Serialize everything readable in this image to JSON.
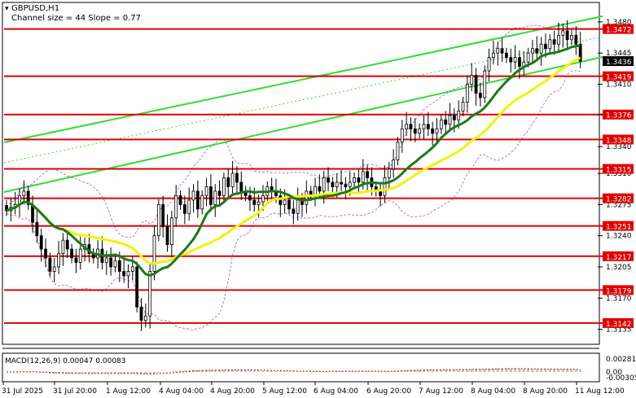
{
  "header": {
    "symbol": "GBPUSD,H1",
    "channel_info": "Channel size = 44 Slope = 0.77"
  },
  "price_axis": {
    "ticks": [
      "1.3480",
      "1.3445",
      "1.3410",
      "1.3376",
      "1.3340",
      "1.3310",
      "1.3275",
      "1.3240",
      "1.3205",
      "1.3170",
      "1.3135"
    ],
    "current_price": "1.3436"
  },
  "levels": [
    {
      "value": 1.3472,
      "label": "1.3472"
    },
    {
      "value": 1.3419,
      "label": "1.3419"
    },
    {
      "value": 1.3376,
      "label": "1.3376"
    },
    {
      "value": 1.3348,
      "label": "1.3348"
    },
    {
      "value": 1.3315,
      "label": "1.3315"
    },
    {
      "value": 1.3282,
      "label": "1.3282"
    },
    {
      "value": 1.3251,
      "label": "1.3251"
    },
    {
      "value": 1.3217,
      "label": "1.3217"
    },
    {
      "value": 1.3179,
      "label": "1.3179"
    },
    {
      "value": 1.3142,
      "label": "1.3142"
    }
  ],
  "time_axis": [
    "31 Jul 2025",
    "31 Jul 20:00",
    "1 Aug 12:00",
    "4 Aug 04:00",
    "4 Aug 20:00",
    "5 Aug 12:00",
    "6 Aug 04:00",
    "6 Aug 20:00",
    "7 Aug 12:00",
    "8 Aug 04:00",
    "8 Aug 20:00",
    "11 Aug 12:00"
  ],
  "macd": {
    "label": "MACD(12,26,9) 0.00047 0.00083",
    "ticks": [
      "0.00281",
      "0.00",
      "-0.00305"
    ]
  },
  "colors": {
    "level_line": "#e00000",
    "level_label_bg": "#e00000",
    "channel": "#33dd33",
    "ma_fast": "#1a7a1a",
    "ma_slow": "#f2f20a",
    "bollinger": "#aa55cc",
    "candles": "#000000",
    "macd_hist": "#c0c0c0",
    "macd_signal": "#cc0000",
    "price_label_bg": "#000000"
  },
  "chart_data": {
    "type": "candlestick",
    "symbol": "GBPUSD",
    "timeframe": "H1",
    "ylim": [
      1.312,
      1.35
    ],
    "close": [
      1.3268,
      1.3272,
      1.3275,
      1.3285,
      1.329,
      1.3275,
      1.3255,
      1.324,
      1.3225,
      1.3215,
      1.32,
      1.3205,
      1.322,
      1.3235,
      1.3225,
      1.3215,
      1.321,
      1.3225,
      1.323,
      1.322,
      1.3215,
      1.3225,
      1.321,
      1.3215,
      1.3205,
      1.3212,
      1.32,
      1.3195,
      1.32,
      1.3205,
      1.316,
      1.3145,
      1.315,
      1.32,
      1.324,
      1.3275,
      1.325,
      1.323,
      1.326,
      1.3285,
      1.3275,
      1.3265,
      1.328,
      1.329,
      1.327,
      1.3285,
      1.3295,
      1.3275,
      1.329,
      1.3285,
      1.3305,
      1.3295,
      1.331,
      1.33,
      1.329,
      1.3285,
      1.328,
      1.3275,
      1.3278,
      1.3285,
      1.3295,
      1.329,
      1.3285,
      1.3275,
      1.328,
      1.327,
      1.3265,
      1.328,
      1.3275,
      1.329,
      1.3285,
      1.3295,
      1.329,
      1.3305,
      1.33,
      1.3295,
      1.33,
      1.3298,
      1.3295,
      1.33,
      1.3305,
      1.33,
      1.3312,
      1.3305,
      1.3295,
      1.329,
      1.3285,
      1.3305,
      1.3315,
      1.3325,
      1.3345,
      1.336,
      1.3365,
      1.336,
      1.3355,
      1.336,
      1.3365,
      1.336,
      1.3355,
      1.336,
      1.337,
      1.3365,
      1.3375,
      1.337,
      1.338,
      1.339,
      1.341,
      1.342,
      1.34,
      1.3395,
      1.3425,
      1.344,
      1.3445,
      1.345,
      1.3445,
      1.344,
      1.3435,
      1.344,
      1.343,
      1.3435,
      1.3445,
      1.345,
      1.3445,
      1.3455,
      1.345,
      1.346,
      1.3455,
      1.3465,
      1.347,
      1.346,
      1.3465,
      1.3455,
      1.3436
    ]
  }
}
